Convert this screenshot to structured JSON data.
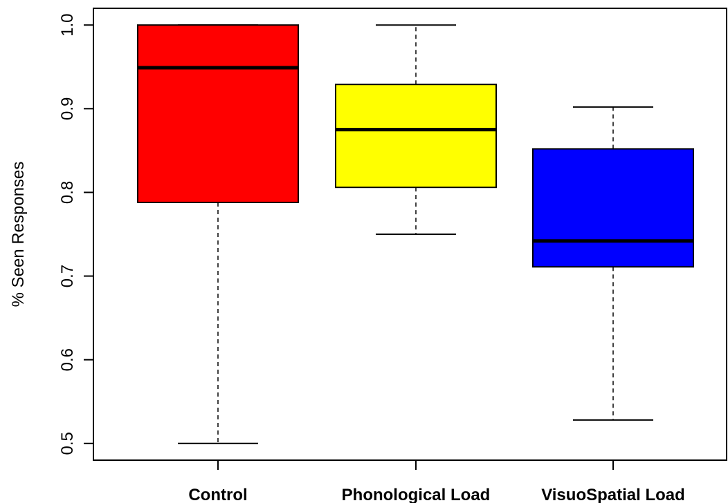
{
  "chart_data": {
    "type": "boxplot",
    "title": "",
    "xlabel": "",
    "ylabel": "% Seen Responses",
    "ylim": [
      0.48,
      1.02
    ],
    "yticks": [
      "0.5",
      "0.6",
      "0.7",
      "0.8",
      "0.9",
      "1.0"
    ],
    "grid": false,
    "legend": "none",
    "categories": [
      "Control",
      "Phonological Load",
      "VisuoSpatial Load"
    ],
    "boxes": [
      {
        "label": "Control",
        "whisker_low": 0.5,
        "q1": 0.788,
        "median": 0.949,
        "q3": 1.0,
        "whisker_high": 1.0,
        "color": "#ff0000"
      },
      {
        "label": "Phonological Load",
        "whisker_low": 0.75,
        "q1": 0.806,
        "median": 0.875,
        "q3": 0.929,
        "whisker_high": 1.0,
        "color": "#ffff00"
      },
      {
        "label": "VisuoSpatial Load",
        "whisker_low": 0.528,
        "q1": 0.711,
        "median": 0.742,
        "q3": 0.852,
        "whisker_high": 0.902,
        "color": "#0000ff"
      }
    ]
  }
}
